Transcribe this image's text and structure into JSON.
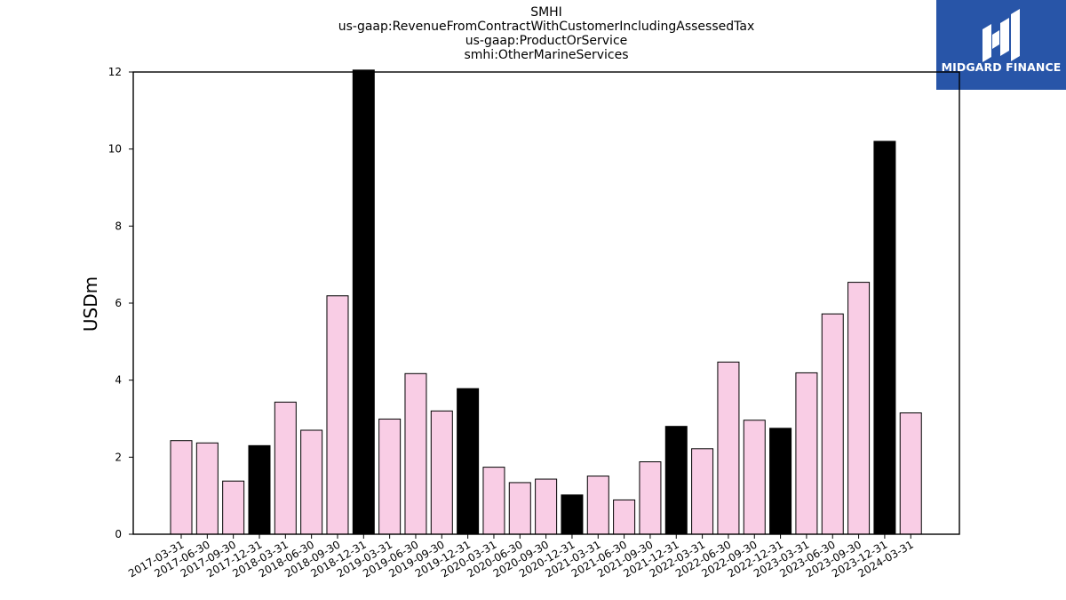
{
  "chart_data": {
    "type": "bar",
    "title_lines": [
      "SMHI",
      "us-gaap:RevenueFromContractWithCustomerIncludingAssessedTax",
      "us-gaap:ProductOrService",
      "smhi:OtherMarineServices"
    ],
    "ylabel": "USDm",
    "xlabel": "",
    "ylim": [
      0,
      12
    ],
    "yticks": [
      0,
      2,
      4,
      6,
      8,
      10,
      12
    ],
    "grid": false,
    "categories": [
      "2017-03-31",
      "2017-06-30",
      "2017-09-30",
      "2017-12-31",
      "2018-03-31",
      "2018-06-30",
      "2018-09-30",
      "2018-12-31",
      "2019-03-31",
      "2019-06-30",
      "2019-09-30",
      "2019-12-31",
      "2020-03-31",
      "2020-06-30",
      "2020-09-30",
      "2020-12-31",
      "2021-03-31",
      "2021-06-30",
      "2021-09-30",
      "2021-12-31",
      "2022-03-31",
      "2022-06-30",
      "2022-09-30",
      "2022-12-31",
      "2023-03-31",
      "2023-06-30",
      "2023-09-30",
      "2023-12-31",
      "2024-03-31"
    ],
    "values": [
      2.43,
      2.37,
      1.38,
      2.3,
      3.43,
      2.7,
      6.19,
      12.05,
      2.99,
      4.17,
      3.2,
      3.78,
      1.74,
      1.34,
      1.43,
      1.02,
      1.51,
      0.89,
      1.88,
      2.8,
      2.22,
      4.47,
      2.96,
      2.75,
      4.19,
      5.72,
      6.54,
      10.2,
      3.15
    ],
    "bar_colors": [
      "#f9cde5",
      "#f9cde5",
      "#f9cde5",
      "#000000",
      "#f9cde5",
      "#f9cde5",
      "#f9cde5",
      "#000000",
      "#f9cde5",
      "#f9cde5",
      "#f9cde5",
      "#000000",
      "#f9cde5",
      "#f9cde5",
      "#f9cde5",
      "#000000",
      "#f9cde5",
      "#f9cde5",
      "#f9cde5",
      "#000000",
      "#f9cde5",
      "#f9cde5",
      "#f9cde5",
      "#000000",
      "#f9cde5",
      "#f9cde5",
      "#f9cde5",
      "#000000",
      "#f9cde5"
    ],
    "bar_edge_color": "#000000"
  },
  "logo": {
    "text": "MIDGARD FINANCE",
    "background": "#2855a8",
    "icon": "midgard-logo-icon"
  }
}
